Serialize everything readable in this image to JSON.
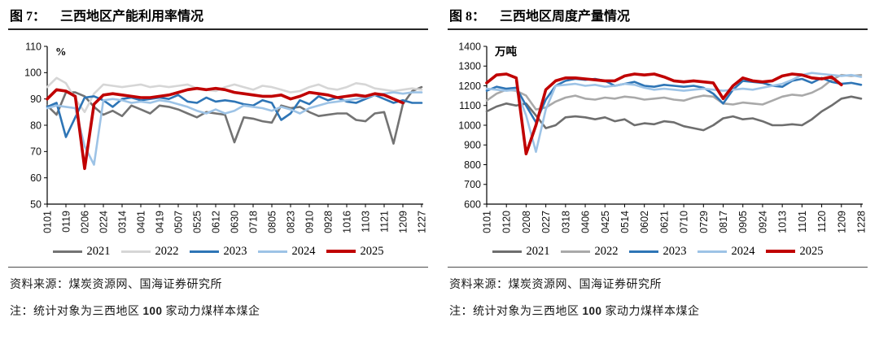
{
  "figures": [
    {
      "label": "图 7：",
      "title": "三西地区产能利用率情况",
      "source": "资料来源：煤炭资源网、国海证券研究所",
      "note_prefix": "注：统计对象为三西地区 ",
      "note_number": "100",
      "note_suffix": " 家动力煤样本煤企"
    },
    {
      "label": "图 8：",
      "title": "三西地区周度产量情况",
      "source": "资料来源：煤炭资源网、国海证券研究所",
      "note_prefix": "注：统计对象为三西地区 ",
      "note_number": "100",
      "note_suffix": " 家动力煤样本煤企"
    }
  ],
  "chart_data": [
    {
      "type": "line",
      "title": "三西地区产能利用率情况",
      "unit": "%",
      "ylim": [
        50,
        110
      ],
      "ytick_step": 10,
      "grid": false,
      "legend_position": "bottom",
      "x_labels": [
        "0101",
        "0119",
        "0206",
        "0224",
        "0314",
        "0401",
        "0419",
        "0507",
        "0525",
        "0612",
        "0630",
        "0718",
        "0805",
        "0823",
        "0910",
        "0928",
        "1016",
        "1103",
        "1121",
        "1209",
        "1227"
      ],
      "series": [
        {
          "name": "2021",
          "color": "#737373",
          "width": 2.6,
          "values": [
            87.5,
            84,
            92.5,
            92.5,
            91,
            87,
            84,
            85.5,
            83.5,
            87.5,
            86,
            84.5,
            87.5,
            87,
            86,
            84.5,
            83,
            85,
            84.5,
            84,
            73.5,
            83,
            82.5,
            81.5,
            81,
            87.5,
            86.5,
            87,
            85,
            83.5,
            84,
            84.5,
            84.5,
            82,
            81.5,
            84.5,
            85,
            73,
            88,
            93,
            94.5
          ]
        },
        {
          "name": "2022",
          "color": "#d6d6d6",
          "width": 2.6,
          "values": [
            94.5,
            98,
            96,
            90,
            85,
            92,
            95.5,
            95,
            94.5,
            95,
            95.5,
            94.5,
            95,
            94.5,
            95,
            95.5,
            94,
            93.5,
            93,
            94.5,
            95.5,
            94.5,
            93.5,
            95,
            94.5,
            93.5,
            92.5,
            93,
            94.5,
            95.5,
            94,
            93.5,
            94.5,
            96,
            95.5,
            94,
            93.5,
            93,
            93.5,
            94,
            93.5
          ]
        },
        {
          "name": "2023",
          "color": "#2e75b6",
          "width": 2.6,
          "values": [
            87,
            88.5,
            75.5,
            83,
            90.5,
            91,
            89.5,
            87,
            90,
            90.5,
            89.5,
            90,
            90.5,
            90,
            91.5,
            89,
            88.5,
            90.5,
            89,
            89.5,
            89,
            88,
            87.5,
            89.5,
            88.5,
            82,
            84.5,
            89.5,
            88,
            91,
            89.5,
            90.5,
            89,
            88.5,
            90,
            91.5,
            90,
            88.5,
            89.5,
            88.5,
            88.5
          ]
        },
        {
          "name": "2024",
          "color": "#9dc3e6",
          "width": 2.6,
          "values": [
            86.5,
            87.5,
            87,
            86.5,
            72,
            65,
            89.5,
            90,
            89.5,
            88.5,
            89,
            88.5,
            89.5,
            89,
            88,
            87,
            85.5,
            84.5,
            86,
            84.5,
            85.5,
            87.5,
            87,
            86.5,
            85.5,
            87,
            86,
            84.5,
            86.5,
            87.5,
            88.5,
            89,
            89.5,
            90,
            90.5,
            91.5,
            92,
            92.5,
            92,
            92.5,
            92.5
          ]
        },
        {
          "name": "2025",
          "color": "#c00000",
          "width": 3.6,
          "values": [
            90,
            93.5,
            93,
            91,
            63.5,
            88,
            91.5,
            92,
            91.5,
            91,
            90.5,
            90.5,
            91,
            91.5,
            92.5,
            93.5,
            94,
            93.5,
            94,
            93.5,
            92.5,
            92,
            91.5,
            91,
            91,
            91.5,
            90,
            91,
            92.5,
            92,
            91.5,
            90.5,
            91,
            91.5,
            91,
            92,
            91.5,
            90,
            88.5,
            null,
            null
          ]
        }
      ]
    },
    {
      "type": "line",
      "title": "三西地区周度产量情况",
      "unit": "万吨",
      "ylim": [
        600,
        1400
      ],
      "ytick_step": 100,
      "grid": false,
      "legend_position": "bottom",
      "x_labels": [
        "0101",
        "0120",
        "0208",
        "0227",
        "0318",
        "0406",
        "0425",
        "0514",
        "0602",
        "0621",
        "0710",
        "0729",
        "0817",
        "0905",
        "0924",
        "1013",
        "1101",
        "1120",
        "1209",
        "1228"
      ],
      "series": [
        {
          "name": "2021",
          "color": "#6e6e6e",
          "width": 2.6,
          "values": [
            1070,
            1095,
            1110,
            1100,
            1110,
            1050,
            985,
            1000,
            1040,
            1045,
            1040,
            1030,
            1040,
            1020,
            1030,
            1000,
            1010,
            1005,
            1020,
            1015,
            995,
            985,
            975,
            1000,
            1035,
            1045,
            1030,
            1035,
            1020,
            1000,
            1000,
            1005,
            1000,
            1030,
            1070,
            1100,
            1135,
            1145,
            1135
          ]
        },
        {
          "name": "2022",
          "color": "#a9a9a9",
          "width": 2.6,
          "values": [
            1125,
            1160,
            1180,
            1175,
            1150,
            1080,
            1090,
            1120,
            1140,
            1150,
            1135,
            1130,
            1140,
            1135,
            1145,
            1140,
            1130,
            1135,
            1140,
            1130,
            1125,
            1140,
            1150,
            1145,
            1110,
            1105,
            1115,
            1110,
            1105,
            1125,
            1145,
            1155,
            1150,
            1165,
            1190,
            1230,
            1255,
            1250,
            1255
          ]
        },
        {
          "name": "2023",
          "color": "#2e75b6",
          "width": 2.6,
          "values": [
            1175,
            1195,
            1185,
            1190,
            1100,
            1015,
            1130,
            1200,
            1225,
            1235,
            1230,
            1235,
            1225,
            1200,
            1210,
            1220,
            1200,
            1195,
            1205,
            1200,
            1195,
            1200,
            1190,
            1160,
            1110,
            1180,
            1225,
            1220,
            1215,
            1200,
            1195,
            1225,
            1235,
            1215,
            1240,
            1220,
            1210,
            1215,
            1205
          ]
        },
        {
          "name": "2024",
          "color": "#9dc3e6",
          "width": 2.6,
          "values": [
            1185,
            1180,
            1175,
            1180,
            1050,
            865,
            1080,
            1200,
            1205,
            1210,
            1200,
            1205,
            1195,
            1200,
            1210,
            1205,
            1190,
            1180,
            1185,
            1180,
            1175,
            1180,
            1185,
            1180,
            1175,
            1180,
            1185,
            1180,
            1190,
            1200,
            1210,
            1230,
            1255,
            1265,
            1260,
            1255,
            1250,
            1255,
            1245
          ]
        },
        {
          "name": "2025",
          "color": "#c00000",
          "width": 3.6,
          "values": [
            1215,
            1255,
            1260,
            1240,
            855,
            1000,
            1180,
            1225,
            1240,
            1240,
            1235,
            1230,
            1225,
            1225,
            1250,
            1260,
            1255,
            1260,
            1245,
            1225,
            1220,
            1225,
            1220,
            1215,
            1135,
            1200,
            1240,
            1225,
            1220,
            1225,
            1250,
            1260,
            1255,
            1240,
            1235,
            1245,
            1205,
            null,
            null
          ]
        }
      ]
    }
  ]
}
